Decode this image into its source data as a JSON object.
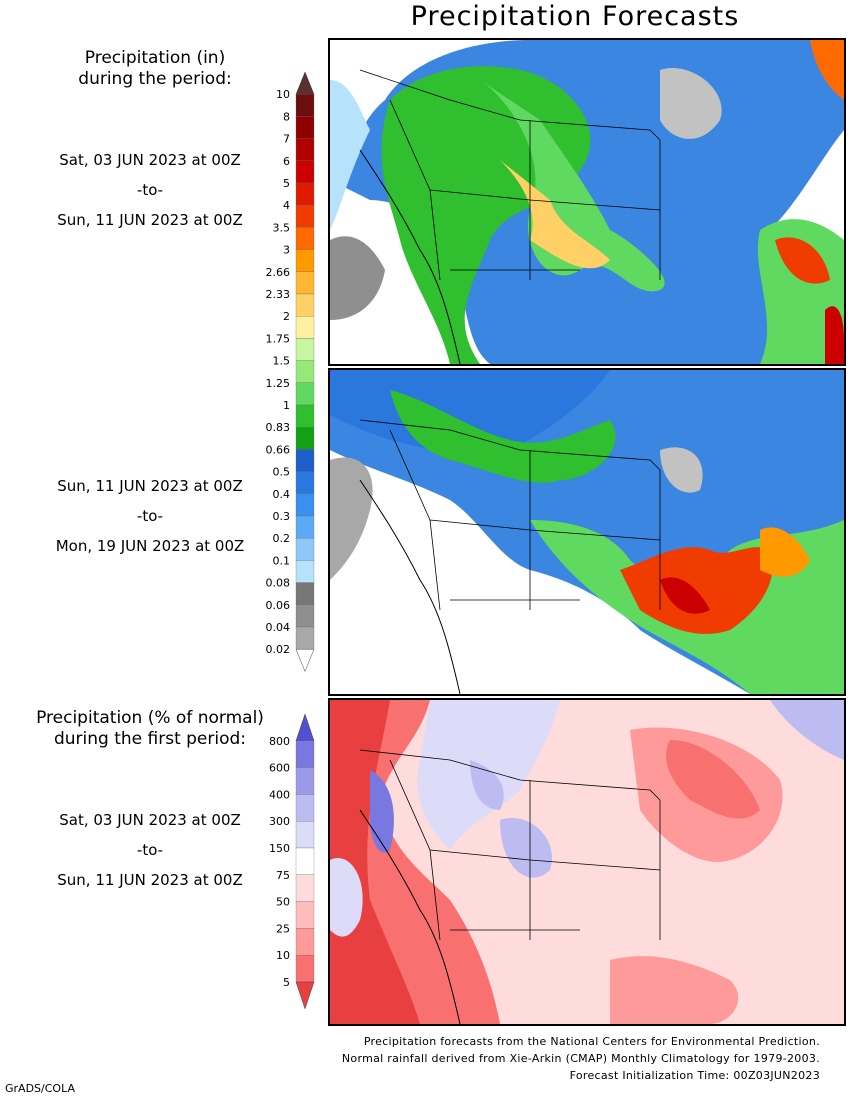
{
  "title": "Precipitation Forecasts",
  "legend_amount": {
    "heading": [
      "Precipitation (in)",
      "during the period:"
    ],
    "ticks": [
      "10",
      "8",
      "7",
      "6",
      "5",
      "4",
      "3.5",
      "3",
      "2.66",
      "2.33",
      "2",
      "1.75",
      "1.5",
      "1.25",
      "1",
      "0.83",
      "0.66",
      "0.5",
      "0.4",
      "0.3",
      "0.2",
      "0.1",
      "0.08",
      "0.06",
      "0.04",
      "0.02"
    ],
    "colors": [
      "#6e0d0d",
      "#8f0000",
      "#b00000",
      "#cc0000",
      "#e01a00",
      "#f03c00",
      "#ff6a00",
      "#ff9900",
      "#ffb733",
      "#ffd066",
      "#fff0a0",
      "#c8f5a0",
      "#96e878",
      "#5fd95f",
      "#2fbf2f",
      "#14a014",
      "#1d5ec8",
      "#2a78de",
      "#3a90ee",
      "#5aaaf5",
      "#8dc8f8",
      "#b6e2fb",
      "#777777",
      "#8f8f8f",
      "#a8a8a8",
      "#c2c2c2",
      "#ffffff"
    ],
    "top_arrow_color": "#5a3030"
  },
  "period1": {
    "start": "Sat, 03 JUN 2023 at 00Z",
    "sep": "-to-",
    "end": "Sun, 11 JUN 2023 at 00Z"
  },
  "period2": {
    "start": "Sun, 11 JUN 2023 at 00Z",
    "sep": "-to-",
    "end": "Mon, 19 JUN 2023 at 00Z"
  },
  "legend_percent": {
    "heading": [
      "Precipitation (% of normal)",
      "during the first period:"
    ],
    "ticks": [
      "800",
      "600",
      "400",
      "300",
      "150",
      "75",
      "50",
      "25",
      "10",
      "5"
    ],
    "colors": [
      "#5050d0",
      "#7878e0",
      "#9a9ae8",
      "#bcbcf0",
      "#dcdcf8",
      "#ffffff",
      "#ffdcdc",
      "#ffbcbc",
      "#ff9a9a",
      "#f87070",
      "#e84040"
    ]
  },
  "period3": {
    "start": "Sat, 03 JUN 2023 at 00Z",
    "sep": "-to-",
    "end": "Sun, 11 JUN 2023 at 00Z"
  },
  "footer": [
    "Precipitation forecasts from the National Centers for Environmental Prediction.",
    "Normal rainfall derived from Xie-Arkin (CMAP) Monthly Climatology for 1979-2003.",
    "Forecast Initialization Time: 00Z03JUN2023"
  ],
  "credit": "GrADS/COLA"
}
